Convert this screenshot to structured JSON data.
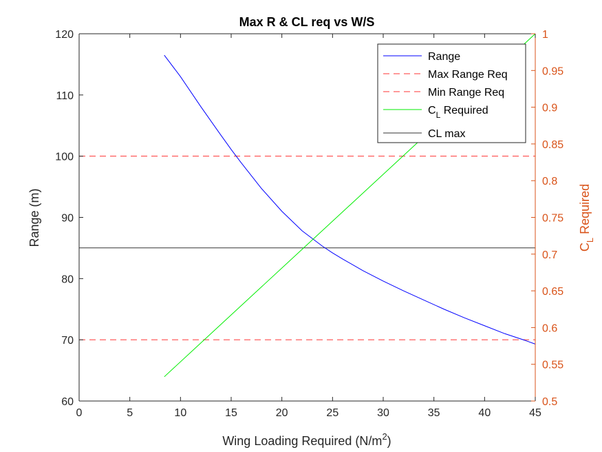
{
  "chart_data": {
    "type": "line",
    "title": "Max R & CL req vs W/S",
    "xlabel_main": "Wing Loading Required (N/m",
    "xlabel_sup": "2",
    "xlabel_end": ")",
    "ylabel_left": "Range (m)",
    "ylabel_right_main": "C",
    "ylabel_right_sub": "L",
    "ylabel_right_end": " Required",
    "xlim": [
      0,
      45
    ],
    "ylim_left": [
      60,
      120
    ],
    "ylim_right": [
      0.5,
      1.0
    ],
    "x_ticks": [
      "0",
      "5",
      "10",
      "15",
      "20",
      "25",
      "30",
      "35",
      "40",
      "45"
    ],
    "y_left_ticks": [
      "60",
      "70",
      "80",
      "90",
      "100",
      "110",
      "120"
    ],
    "y_right_ticks": [
      "0.5",
      "0.55",
      "0.6",
      "0.65",
      "0.7",
      "0.75",
      "0.8",
      "0.85",
      "0.9",
      "0.95",
      "1"
    ],
    "grid": false,
    "legend_position": "top-right",
    "colors": {
      "range": "#0000ff",
      "max_range_req": "#ff3333",
      "min_range_req": "#ff3333",
      "cl_required": "#00ee00",
      "cl_max": "#333333",
      "right_axis": "#d95319"
    },
    "series": [
      {
        "name": "Range",
        "axis": "left",
        "style": "solid",
        "x": [
          8.4,
          10,
          12,
          14,
          15,
          16,
          18,
          20,
          22,
          24,
          25,
          26,
          28,
          30,
          32,
          34,
          36,
          38,
          40,
          42,
          44,
          45
        ],
        "y": [
          116.5,
          113,
          108.1,
          103.4,
          101.1,
          98.9,
          94.7,
          91.0,
          87.8,
          85.3,
          84.2,
          83.2,
          81.3,
          79.6,
          78.0,
          76.5,
          75.0,
          73.6,
          72.3,
          71.0,
          69.9,
          69.3
        ]
      },
      {
        "name": "Max Range Req",
        "axis": "left",
        "style": "dashed",
        "x": [
          0,
          45
        ],
        "y": [
          100,
          100
        ]
      },
      {
        "name": "Min Range Req",
        "axis": "left",
        "style": "dashed",
        "x": [
          0,
          45
        ],
        "y": [
          70,
          70
        ]
      },
      {
        "name_main": "C",
        "name_sub": "L",
        "name_end": " Required",
        "axis": "right",
        "style": "solid",
        "x": [
          8.4,
          45
        ],
        "y": [
          0.533,
          1.0
        ]
      },
      {
        "name": "CL max",
        "axis": "right",
        "style": "solid",
        "x": [
          0,
          45
        ],
        "y": [
          0.7085,
          0.7085
        ]
      }
    ]
  }
}
